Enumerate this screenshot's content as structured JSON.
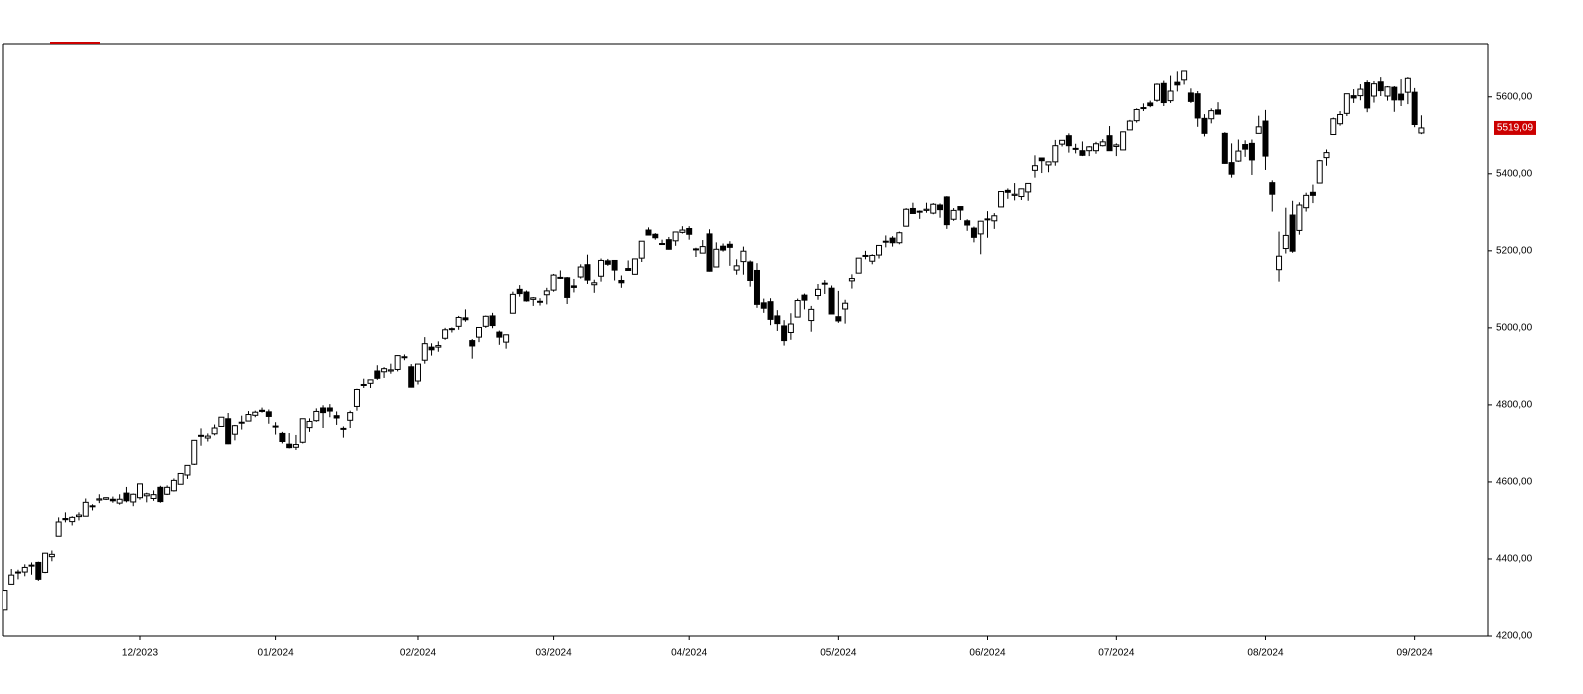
{
  "chart_data": {
    "type": "candlestick",
    "categories": [
      null,
      null,
      null,
      null,
      null,
      null,
      null,
      null,
      null,
      null,
      null,
      null,
      null,
      null,
      null,
      null,
      null,
      null,
      null,
      null,
      "12/2023",
      null,
      null,
      null,
      null,
      null,
      null,
      null,
      null,
      null,
      null,
      null,
      null,
      null,
      null,
      null,
      null,
      null,
      null,
      null,
      "01/2024",
      null,
      null,
      null,
      null,
      null,
      null,
      null,
      null,
      null,
      null,
      null,
      null,
      null,
      null,
      null,
      null,
      null,
      null,
      null,
      null,
      "02/2024",
      null,
      null,
      null,
      null,
      null,
      null,
      null,
      null,
      null,
      null,
      null,
      null,
      null,
      null,
      null,
      null,
      null,
      null,
      null,
      "03/2024",
      null,
      null,
      null,
      null,
      null,
      null,
      null,
      null,
      null,
      null,
      null,
      null,
      null,
      null,
      null,
      null,
      null,
      null,
      null,
      "04/2024",
      null,
      null,
      null,
      null,
      null,
      null,
      null,
      null,
      null,
      null,
      null,
      null,
      null,
      null,
      null,
      null,
      null,
      null,
      null,
      null,
      null,
      "05/2024",
      null,
      null,
      null,
      null,
      null,
      null,
      null,
      null,
      null,
      null,
      null,
      null,
      null,
      null,
      null,
      null,
      null,
      null,
      null,
      null,
      null,
      "06/2024",
      null,
      null,
      null,
      null,
      null,
      null,
      null,
      null,
      null,
      null,
      null,
      null,
      null,
      null,
      null,
      null,
      null,
      null,
      "07/2024",
      null,
      null,
      null,
      null,
      null,
      null,
      null,
      null,
      null,
      null,
      null,
      null,
      null,
      null,
      null,
      null,
      null,
      null,
      null,
      null,
      null,
      "08/2024",
      null,
      null,
      null,
      null,
      null,
      null,
      null,
      null,
      null,
      null,
      null,
      null,
      null,
      null,
      null,
      null,
      null,
      null,
      null,
      null,
      null,
      "09/2024",
      null
    ],
    "candles": [
      [
        4268,
        4319,
        4268,
        4318
      ],
      [
        4334,
        4374,
        4334,
        4358
      ],
      [
        4364,
        4372,
        4347,
        4366
      ],
      [
        4366,
        4386,
        4355,
        4378
      ],
      [
        4384,
        4391,
        4359,
        4383
      ],
      [
        4391,
        4393,
        4343,
        4347
      ],
      [
        4365,
        4416,
        4363,
        4415
      ],
      [
        4406,
        4422,
        4394,
        4412
      ],
      [
        4459,
        4508,
        4459,
        4496
      ],
      [
        4505,
        4521,
        4495,
        4502
      ],
      [
        4497,
        4511,
        4487,
        4508
      ],
      [
        4510,
        4521,
        4500,
        4514
      ],
      [
        4511,
        4557,
        4511,
        4547
      ],
      [
        4538,
        4542,
        4526,
        4538
      ],
      [
        4553,
        4568,
        4545,
        4556
      ],
      [
        4555,
        4560,
        4553,
        4559
      ],
      [
        4555,
        4562,
        4546,
        4551
      ],
      [
        4545,
        4568,
        4541,
        4555
      ],
      [
        4571,
        4587,
        4547,
        4551
      ],
      [
        4548,
        4570,
        4537,
        4568
      ],
      [
        4559,
        4595,
        4554,
        4595
      ],
      [
        4564,
        4572,
        4547,
        4569
      ],
      [
        4557,
        4578,
        4551,
        4567
      ],
      [
        4586,
        4590,
        4546,
        4549
      ],
      [
        4568,
        4591,
        4566,
        4586
      ],
      [
        4577,
        4609,
        4575,
        4604
      ],
      [
        4594,
        4623,
        4594,
        4622
      ],
      [
        4618,
        4643,
        4608,
        4643
      ],
      [
        4646,
        4709,
        4644,
        4708
      ],
      [
        4721,
        4739,
        4694,
        4720
      ],
      [
        4714,
        4726,
        4705,
        4719
      ],
      [
        4725,
        4749,
        4721,
        4740
      ],
      [
        4744,
        4768,
        4744,
        4768
      ],
      [
        4764,
        4779,
        4698,
        4699
      ],
      [
        4724,
        4748,
        4708,
        4746
      ],
      [
        4753,
        4772,
        4736,
        4755
      ],
      [
        4758,
        4784,
        4758,
        4775
      ],
      [
        4773,
        4785,
        4768,
        4781
      ],
      [
        4786,
        4793,
        4780,
        4783
      ],
      [
        4782,
        4788,
        4751,
        4770
      ],
      [
        4745,
        4755,
        4723,
        4743
      ],
      [
        4726,
        4730,
        4700,
        4705
      ],
      [
        4698,
        4727,
        4687,
        4689
      ],
      [
        4690,
        4722,
        4683,
        4697
      ],
      [
        4703,
        4764,
        4700,
        4764
      ],
      [
        4741,
        4765,
        4730,
        4757
      ],
      [
        4759,
        4791,
        4756,
        4783
      ],
      [
        4792,
        4799,
        4740,
        4780
      ],
      [
        4792,
        4802,
        4768,
        4784
      ],
      [
        4772,
        4783,
        4748,
        4766
      ],
      [
        4739,
        4744,
        4715,
        4739
      ],
      [
        4760,
        4785,
        4740,
        4780
      ],
      [
        4796,
        4842,
        4785,
        4840
      ],
      [
        4853,
        4868,
        4844,
        4851
      ],
      [
        4856,
        4866,
        4844,
        4865
      ],
      [
        4888,
        4903,
        4865,
        4869
      ],
      [
        4886,
        4898,
        4870,
        4894
      ],
      [
        4888,
        4907,
        4881,
        4891
      ],
      [
        4892,
        4929,
        4887,
        4928
      ],
      [
        4925,
        4931,
        4916,
        4925
      ],
      [
        4899,
        4906,
        4845,
        4846
      ],
      [
        4862,
        4906,
        4853,
        4906
      ],
      [
        4916,
        4976,
        4907,
        4959
      ],
      [
        4950,
        4960,
        4928,
        4943
      ],
      [
        4950,
        4965,
        4938,
        4954
      ],
      [
        4973,
        5000,
        4969,
        4995
      ],
      [
        4996,
        5001,
        4988,
        4998
      ],
      [
        5004,
        5031,
        4995,
        5027
      ],
      [
        5026,
        5048,
        5016,
        5021
      ],
      [
        4967,
        4971,
        4920,
        4953
      ],
      [
        4976,
        5002,
        4963,
        5001
      ],
      [
        5004,
        5032,
        5000,
        5030
      ],
      [
        5031,
        5039,
        4999,
        5006
      ],
      [
        4989,
        4993,
        4956,
        4976
      ],
      [
        4963,
        4983,
        4946,
        4982
      ],
      [
        5038,
        5094,
        5038,
        5087
      ],
      [
        5100,
        5111,
        5081,
        5089
      ],
      [
        5093,
        5097,
        5068,
        5070
      ],
      [
        5074,
        5080,
        5057,
        5078
      ],
      [
        5067,
        5077,
        5058,
        5069
      ],
      [
        5086,
        5104,
        5061,
        5096
      ],
      [
        5098,
        5140,
        5094,
        5137
      ],
      [
        5131,
        5149,
        5127,
        5131
      ],
      [
        5130,
        5132,
        5062,
        5079
      ],
      [
        5109,
        5127,
        5092,
        5105
      ],
      [
        5132,
        5165,
        5128,
        5158
      ],
      [
        5164,
        5190,
        5114,
        5124
      ],
      [
        5112,
        5125,
        5091,
        5117
      ],
      [
        5134,
        5180,
        5120,
        5175
      ],
      [
        5174,
        5179,
        5161,
        5165
      ],
      [
        5175,
        5176,
        5123,
        5150
      ],
      [
        5123,
        5136,
        5104,
        5117
      ],
      [
        5154,
        5175,
        5149,
        5149
      ],
      [
        5139,
        5180,
        5138,
        5179
      ],
      [
        5181,
        5225,
        5171,
        5225
      ],
      [
        5254,
        5261,
        5240,
        5241
      ],
      [
        5243,
        5246,
        5229,
        5234
      ],
      [
        5219,
        5229,
        5216,
        5218
      ],
      [
        5229,
        5236,
        5203,
        5204
      ],
      [
        5226,
        5249,
        5213,
        5249
      ],
      [
        5248,
        5264,
        5245,
        5254
      ],
      [
        5258,
        5264,
        5229,
        5243
      ],
      [
        5204,
        5208,
        5184,
        5205
      ],
      [
        5194,
        5228,
        5194,
        5211
      ],
      [
        5244,
        5256,
        5146,
        5147
      ],
      [
        5158,
        5222,
        5157,
        5204
      ],
      [
        5212,
        5219,
        5198,
        5202
      ],
      [
        5217,
        5225,
        5161,
        5209
      ],
      [
        5150,
        5178,
        5138,
        5161
      ],
      [
        5172,
        5211,
        5138,
        5199
      ],
      [
        5171,
        5175,
        5107,
        5123
      ],
      [
        5149,
        5168,
        5052,
        5061
      ],
      [
        5065,
        5076,
        5039,
        5051
      ],
      [
        5068,
        5077,
        5007,
        5022
      ],
      [
        5031,
        5046,
        4992,
        5011
      ],
      [
        5005,
        5020,
        4954,
        4967
      ],
      [
        4988,
        5038,
        4969,
        5010
      ],
      [
        5028,
        5076,
        5027,
        5071
      ],
      [
        5085,
        5089,
        5048,
        5072
      ],
      [
        5019,
        5057,
        4990,
        5048
      ],
      [
        5084,
        5114,
        5073,
        5100
      ],
      [
        5114,
        5124,
        5088,
        5116
      ],
      [
        5103,
        5110,
        5035,
        5036
      ],
      [
        5029,
        5096,
        5013,
        5018
      ],
      [
        5049,
        5073,
        5011,
        5064
      ],
      [
        5122,
        5139,
        5102,
        5128
      ],
      [
        5142,
        5181,
        5142,
        5181
      ],
      [
        5187,
        5200,
        5178,
        5188
      ],
      [
        5173,
        5191,
        5165,
        5188
      ],
      [
        5189,
        5215,
        5180,
        5214
      ],
      [
        5225,
        5240,
        5209,
        5223
      ],
      [
        5233,
        5238,
        5211,
        5221
      ],
      [
        5221,
        5250,
        5217,
        5247
      ],
      [
        5264,
        5311,
        5263,
        5308
      ],
      [
        5310,
        5325,
        5297,
        5297
      ],
      [
        5303,
        5305,
        5283,
        5303
      ],
      [
        5305,
        5325,
        5299,
        5308
      ],
      [
        5298,
        5324,
        5295,
        5321
      ],
      [
        5319,
        5323,
        5286,
        5307
      ],
      [
        5340,
        5342,
        5257,
        5268
      ],
      [
        5282,
        5311,
        5278,
        5305
      ],
      [
        5315,
        5315,
        5280,
        5306
      ],
      [
        5278,
        5282,
        5252,
        5267
      ],
      [
        5259,
        5263,
        5222,
        5235
      ],
      [
        5244,
        5278,
        5191,
        5277
      ],
      [
        5283,
        5303,
        5234,
        5283
      ],
      [
        5278,
        5298,
        5257,
        5291
      ],
      [
        5314,
        5355,
        5314,
        5354
      ],
      [
        5357,
        5362,
        5335,
        5352
      ],
      [
        5344,
        5376,
        5331,
        5347
      ],
      [
        5341,
        5362,
        5332,
        5361
      ],
      [
        5353,
        5376,
        5330,
        5375
      ],
      [
        5409,
        5448,
        5390,
        5421
      ],
      [
        5441,
        5441,
        5402,
        5434
      ],
      [
        5423,
        5432,
        5404,
        5431
      ],
      [
        5431,
        5488,
        5421,
        5473
      ],
      [
        5477,
        5487,
        5471,
        5487
      ],
      [
        5499,
        5505,
        5455,
        5473
      ],
      [
        5466,
        5478,
        5453,
        5465
      ],
      [
        5460,
        5484,
        5446,
        5448
      ],
      [
        5460,
        5472,
        5446,
        5470
      ],
      [
        5460,
        5483,
        5452,
        5478
      ],
      [
        5473,
        5490,
        5471,
        5483
      ],
      [
        5499,
        5524,
        5460,
        5460
      ],
      [
        5471,
        5479,
        5446,
        5475
      ],
      [
        5462,
        5510,
        5462,
        5509
      ],
      [
        5514,
        5540,
        5514,
        5537
      ],
      [
        5538,
        5570,
        5533,
        5567
      ],
      [
        5572,
        5583,
        5563,
        5572
      ],
      [
        5584,
        5590,
        5573,
        5577
      ],
      [
        5591,
        5635,
        5587,
        5633
      ],
      [
        5635,
        5642,
        5576,
        5585
      ],
      [
        5590,
        5655,
        5584,
        5615
      ],
      [
        5638,
        5666,
        5614,
        5631
      ],
      [
        5644,
        5667,
        5632,
        5667
      ],
      [
        5610,
        5622,
        5584,
        5588
      ],
      [
        5608,
        5615,
        5522,
        5545
      ],
      [
        5544,
        5555,
        5497,
        5505
      ],
      [
        5543,
        5570,
        5531,
        5564
      ],
      [
        5566,
        5586,
        5554,
        5555
      ],
      [
        5505,
        5508,
        5426,
        5427
      ],
      [
        5429,
        5479,
        5390,
        5399
      ],
      [
        5433,
        5489,
        5431,
        5459
      ],
      [
        5476,
        5487,
        5444,
        5464
      ],
      [
        5479,
        5489,
        5397,
        5436
      ],
      [
        5505,
        5551,
        5505,
        5522
      ],
      [
        5537,
        5566,
        5410,
        5446
      ],
      [
        5377,
        5383,
        5302,
        5347
      ],
      [
        5151,
        5250,
        5120,
        5186
      ],
      [
        5206,
        5312,
        5193,
        5240
      ],
      [
        5293,
        5330,
        5195,
        5199
      ],
      [
        5253,
        5326,
        5242,
        5319
      ],
      [
        5312,
        5351,
        5302,
        5344
      ],
      [
        5352,
        5372,
        5324,
        5344
      ],
      [
        5376,
        5436,
        5376,
        5434
      ],
      [
        5442,
        5463,
        5421,
        5455
      ],
      [
        5502,
        5546,
        5501,
        5543
      ],
      [
        5530,
        5563,
        5525,
        5554
      ],
      [
        5557,
        5608,
        5550,
        5608
      ],
      [
        5603,
        5620,
        5584,
        5597
      ],
      [
        5603,
        5633,
        5591,
        5620
      ],
      [
        5637,
        5643,
        5560,
        5571
      ],
      [
        5602,
        5641,
        5585,
        5634
      ],
      [
        5639,
        5651,
        5602,
        5616
      ],
      [
        5602,
        5628,
        5590,
        5626
      ],
      [
        5625,
        5628,
        5561,
        5592
      ],
      [
        5607,
        5646,
        5576,
        5592
      ],
      [
        5612,
        5651,
        5581,
        5648
      ],
      [
        5612,
        5623,
        5521,
        5528
      ],
      [
        5506,
        5552,
        5503,
        5519.09
      ]
    ],
    "up_color": "#ffffff",
    "down_color": "#000000",
    "last_price_color": "#cc0000",
    "last_price": {
      "value": 5519.09,
      "label": "5519,09"
    },
    "ylim": [
      4200,
      5737
    ],
    "yticks": [
      {
        "value": 4200,
        "label": "4200,00"
      },
      {
        "value": 4400,
        "label": "4400,00"
      },
      {
        "value": 4600,
        "label": "4600,00"
      },
      {
        "value": 4800,
        "label": "4800,00"
      },
      {
        "value": 5000,
        "label": "5000,00"
      },
      {
        "value": 5200,
        "label": "5200,00"
      },
      {
        "value": 5400,
        "label": "5400,00"
      },
      {
        "value": 5600,
        "label": "5600,00"
      }
    ],
    "grid": false
  }
}
